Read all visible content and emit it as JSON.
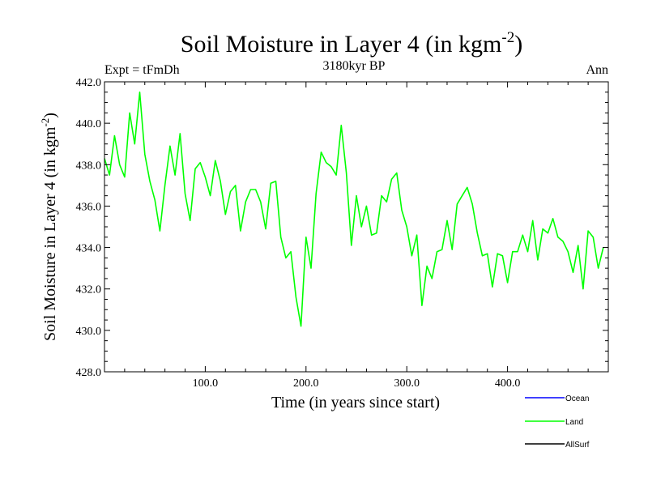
{
  "chart_data": {
    "type": "line",
    "title": "Soil Moisture in Layer 4 (in kgm",
    "title_sup": "-2",
    "title_close": ")",
    "subtitle_left": "Expt = tFmDh",
    "subtitle_center": "3180kyr BP",
    "subtitle_right": "Ann",
    "xlabel": "Time (in years since start)",
    "ylabel": "Soil Moisture in Layer 4 (in kgm",
    "ylabel_sup": "-2",
    "ylabel_close": ")",
    "xlim": [
      0,
      500
    ],
    "ylim": [
      428.0,
      442.0
    ],
    "x_ticks": [
      100,
      200,
      300,
      400
    ],
    "x_tick_labels": [
      "100.0",
      "200.0",
      "300.0",
      "400.0"
    ],
    "y_ticks": [
      428,
      430,
      432,
      434,
      436,
      438,
      440,
      442
    ],
    "y_tick_labels": [
      "428.0",
      "430.0",
      "432.0",
      "434.0",
      "436.0",
      "438.0",
      "440.0",
      "442.0"
    ],
    "grid": false,
    "legend_position": "bottom-right",
    "legend": [
      {
        "name": "Ocean",
        "color": "#0000ff"
      },
      {
        "name": "Land",
        "color": "#00ff00"
      },
      {
        "name": "AllSurf",
        "color": "#000000"
      }
    ],
    "series": [
      {
        "name": "Land",
        "color": "#00ff00",
        "x_start": 0,
        "x_step": 5,
        "values": [
          438.3,
          437.5,
          439.4,
          438.0,
          437.4,
          440.5,
          439.0,
          441.5,
          438.5,
          437.2,
          436.3,
          434.8,
          437.0,
          438.9,
          437.5,
          439.5,
          436.6,
          435.3,
          437.8,
          438.1,
          437.4,
          436.5,
          438.2,
          437.2,
          435.6,
          436.7,
          437.0,
          434.8,
          436.2,
          436.8,
          436.8,
          436.2,
          434.9,
          437.1,
          437.2,
          434.5,
          433.5,
          433.8,
          431.6,
          430.2,
          434.5,
          433.0,
          436.6,
          438.6,
          438.1,
          437.9,
          437.5,
          439.9,
          437.6,
          434.1,
          436.5,
          435.0,
          436.0,
          434.6,
          434.7,
          436.5,
          436.2,
          437.3,
          437.6,
          435.8,
          435.0,
          433.6,
          434.6,
          431.2,
          433.1,
          432.5,
          433.8,
          433.9,
          435.3,
          433.9,
          436.1,
          436.5,
          436.9,
          436.1,
          434.7,
          433.6,
          433.7,
          432.1,
          433.7,
          433.6,
          432.3,
          433.8,
          433.8,
          434.6,
          433.8,
          435.3,
          433.4,
          434.9,
          434.7,
          435.4,
          434.5,
          434.3,
          433.8,
          432.8,
          434.1,
          432.0,
          434.8,
          434.5,
          433.0,
          434.0
        ]
      },
      {
        "name": "Ocean",
        "color": "#0000ff",
        "values": []
      },
      {
        "name": "AllSurf",
        "color": "#000000",
        "values": []
      }
    ]
  }
}
